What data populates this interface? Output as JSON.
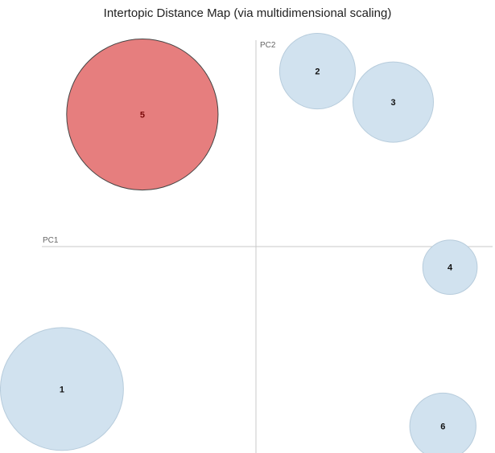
{
  "chart_data": {
    "type": "scatter",
    "title": "Intertopic Distance Map (via multidimensional scaling)",
    "xlabel": "PC1",
    "ylabel": "PC2",
    "xlim": [
      -1,
      1
    ],
    "ylim": [
      -1,
      1
    ],
    "grid": false,
    "colors": {
      "default_fill": "#d1e2ef",
      "default_stroke": "#b7ccdc",
      "selected_fill": "#e67e7e",
      "selected_stroke": "#444444",
      "axis": "#c8c8c8",
      "label_default": "#111111",
      "label_selected": "#7a0a0a"
    },
    "series": [
      {
        "points": [
          {
            "label": "1",
            "x": -0.82,
            "y": -0.69,
            "size": 0.26,
            "selected": false
          },
          {
            "label": "2",
            "x": 0.26,
            "y": 0.85,
            "size": 0.16,
            "selected": false
          },
          {
            "label": "3",
            "x": 0.58,
            "y": 0.7,
            "size": 0.17,
            "selected": false
          },
          {
            "label": "4",
            "x": 0.82,
            "y": -0.1,
            "size": 0.115,
            "selected": false
          },
          {
            "label": "5",
            "x": -0.48,
            "y": 0.64,
            "size": 0.32,
            "selected": true
          },
          {
            "label": "6",
            "x": 0.79,
            "y": -0.87,
            "size": 0.14,
            "selected": false
          }
        ]
      }
    ]
  }
}
